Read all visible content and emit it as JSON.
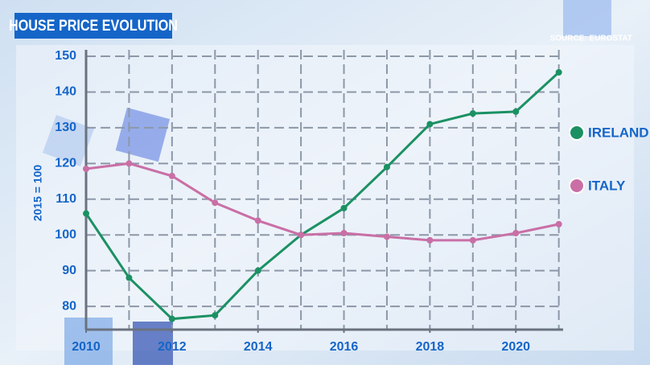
{
  "chart_data": {
    "type": "line",
    "title": "HOUSE PRICE EVOLUTION",
    "source": "SOURCE: EUROSTAT",
    "y_label": "2015 = 100",
    "x": [
      2010,
      2011,
      2012,
      2013,
      2014,
      2015,
      2016,
      2017,
      2018,
      2019,
      2020,
      2021
    ],
    "series": [
      {
        "name": "IRELAND",
        "color": "#1b9163",
        "values": [
          106,
          88,
          76.5,
          77.5,
          90,
          100,
          107.5,
          119,
          131,
          134,
          134.5,
          145.5
        ]
      },
      {
        "name": "ITALY",
        "color": "#c96fa6",
        "values": [
          118.5,
          120,
          116.5,
          109,
          104,
          100,
          100.5,
          99.5,
          98.5,
          98.5,
          100.5,
          103
        ]
      }
    ],
    "xlim": [
      2010,
      2021.1
    ],
    "xticks": [
      2010,
      2012,
      2014,
      2016,
      2018,
      2020
    ],
    "xgrid": [
      2011,
      2012,
      2013,
      2014,
      2015,
      2016,
      2017,
      2018,
      2019,
      2020,
      2021
    ],
    "ylim": [
      73.5,
      150
    ],
    "yticks": [
      80,
      90,
      100,
      110,
      120,
      130,
      140,
      150
    ],
    "grid": true
  }
}
